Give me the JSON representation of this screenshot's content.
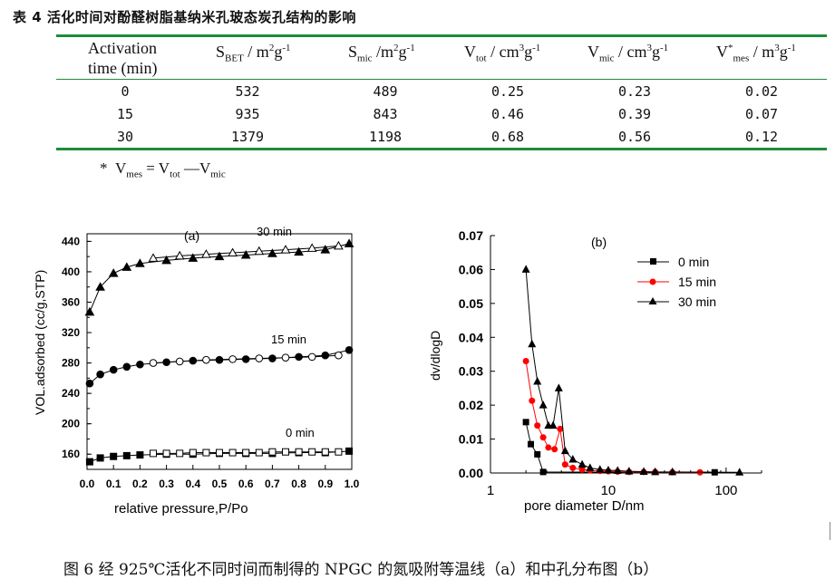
{
  "table": {
    "title": "表 4  活化时间对酚醛树脂基纳米孔玻态炭孔结构的影响",
    "headers": {
      "activation": {
        "line1": "Activation",
        "line2": "time (min)"
      },
      "sbet": {
        "main": "S",
        "sub": "BET",
        "rest1": " / m",
        "sup1": "2",
        "rest2": "g",
        "sup2": "-1"
      },
      "smic": {
        "main": "S",
        "sub": "mic",
        "rest1": " /m",
        "sup1": "2",
        "rest2": "g",
        "sup2": "-1"
      },
      "vtot": {
        "main": "V",
        "sub": "tot",
        "rest1": " / cm",
        "sup1": "3",
        "rest2": "g",
        "sup2": "-1"
      },
      "vmic": {
        "main": "V",
        "sub": "mic",
        "rest1": " / cm",
        "sup1": "3",
        "rest2": "g",
        "sup2": "-1"
      },
      "vmes": {
        "main": "V",
        "star": "*",
        "sub": "mes",
        "rest1": " / m",
        "sup1": "3",
        "rest2": "g",
        "sup2": "-1"
      }
    },
    "rows": [
      [
        "0",
        "532",
        "489",
        "0.25",
        "0.23",
        "0.02"
      ],
      [
        "15",
        "935",
        "843",
        "0.46",
        "0.39",
        "0.07"
      ],
      [
        "30",
        "1379",
        "1198",
        "0.68",
        "0.56",
        "0.12"
      ]
    ],
    "footnote": {
      "star": "*",
      "v1": "V",
      "sub1": "mes",
      "eq": " = ",
      "v2": "V",
      "sub2": "tot",
      "dash": " —",
      "v3": "V",
      "sub3": "mic"
    }
  },
  "chart_data": [
    {
      "type": "scatter",
      "panel_label": "(a)",
      "xlabel": "relative pressure,P/Po",
      "ylabel": "VOL.adsorbed (cc/g,STP)",
      "xlim": [
        0.0,
        1.0
      ],
      "ylim": [
        140,
        450
      ],
      "xticks": [
        "0.0",
        "0.1",
        "0.2",
        "0.3",
        "0.4",
        "0.5",
        "0.6",
        "0.7",
        "0.8",
        "0.9",
        "1.0"
      ],
      "yticks": [
        "160",
        "200",
        "240",
        "280",
        "320",
        "360",
        "400",
        "440"
      ],
      "series": [
        {
          "name": "0 min",
          "adsorption": {
            "x": [
              0.01,
              0.05,
              0.1,
              0.15,
              0.2,
              0.3,
              0.4,
              0.5,
              0.6,
              0.7,
              0.8,
              0.9,
              0.99
            ],
            "y": [
              150,
              155,
              157,
              158,
              159,
              160,
              160,
              161,
              161,
              161,
              162,
              162,
              164
            ]
          },
          "desorption": {
            "x": [
              0.25,
              0.3,
              0.35,
              0.4,
              0.45,
              0.5,
              0.55,
              0.6,
              0.65,
              0.7,
              0.75,
              0.8,
              0.85,
              0.9,
              0.95
            ],
            "y": [
              161,
              161,
              161,
              162,
              162,
              162,
              162,
              162,
              162,
              163,
              163,
              163,
              163,
              163,
              163
            ]
          }
        },
        {
          "name": "15 min",
          "adsorption": {
            "x": [
              0.01,
              0.05,
              0.1,
              0.15,
              0.2,
              0.3,
              0.4,
              0.5,
              0.6,
              0.7,
              0.8,
              0.9,
              0.99
            ],
            "y": [
              253,
              265,
              271,
              275,
              278,
              281,
              283,
              284,
              285,
              286,
              288,
              290,
              297
            ]
          },
          "desorption": {
            "x": [
              0.25,
              0.35,
              0.45,
              0.55,
              0.65,
              0.75,
              0.85,
              0.95
            ],
            "y": [
              280,
              282,
              284,
              285,
              286,
              287,
              288,
              290
            ]
          }
        },
        {
          "name": "30 min",
          "adsorption": {
            "x": [
              0.01,
              0.05,
              0.1,
              0.15,
              0.2,
              0.3,
              0.4,
              0.5,
              0.6,
              0.7,
              0.8,
              0.9,
              0.99
            ],
            "y": [
              347,
              380,
              398,
              406,
              411,
              415,
              418,
              420,
              422,
              424,
              426,
              429,
              437
            ]
          },
          "desorption": {
            "x": [
              0.25,
              0.35,
              0.45,
              0.55,
              0.65,
              0.75,
              0.85,
              0.95
            ],
            "y": [
              418,
              421,
              423,
              425,
              427,
              429,
              431,
              434
            ]
          }
        }
      ]
    },
    {
      "type": "line",
      "panel_label": "(b)",
      "xlabel": "pore diameter   D/nm",
      "ylabel": "dv/dlogD",
      "xscale": "log",
      "xlim": [
        1,
        200
      ],
      "ylim": [
        0.0,
        0.07
      ],
      "xticks": [
        "1",
        "10",
        "100"
      ],
      "yticks": [
        "0.00",
        "0.01",
        "0.02",
        "0.03",
        "0.04",
        "0.05",
        "0.06",
        "0.07"
      ],
      "legend_position": "top-right",
      "series": [
        {
          "name": "0 min",
          "color": "#000000",
          "marker": "square",
          "x": [
            2.0,
            2.2,
            2.5,
            2.8,
            80
          ],
          "y": [
            0.015,
            0.0085,
            0.0055,
            0.0003,
            0.0002
          ]
        },
        {
          "name": "15 min",
          "color": "#ff0000",
          "marker": "circle",
          "x": [
            2.0,
            2.25,
            2.5,
            2.8,
            3.1,
            3.5,
            3.9,
            4.3,
            5.0,
            6.0,
            7.0,
            8.5,
            10,
            12,
            15,
            20,
            25,
            35,
            60
          ],
          "y": [
            0.033,
            0.0213,
            0.014,
            0.0105,
            0.0075,
            0.007,
            0.013,
            0.0025,
            0.0015,
            0.001,
            0.0008,
            0.0006,
            0.0005,
            0.0004,
            0.0003,
            0.0003,
            0.0003,
            0.0002,
            0.0002
          ]
        },
        {
          "name": "30 min",
          "color": "#000000",
          "marker": "triangle",
          "x": [
            2.0,
            2.25,
            2.5,
            2.8,
            3.1,
            3.4,
            3.8,
            4.3,
            5.0,
            6.0,
            7.0,
            8.5,
            10,
            12,
            15,
            20,
            25,
            35,
            130
          ],
          "y": [
            0.06,
            0.038,
            0.027,
            0.02,
            0.014,
            0.014,
            0.025,
            0.0065,
            0.004,
            0.0025,
            0.0015,
            0.001,
            0.0008,
            0.0007,
            0.0005,
            0.0004,
            0.0003,
            0.0003,
            0.0002
          ]
        }
      ]
    }
  ],
  "figure": {
    "caption": "图 6   经 925℃活化不同时间而制得的 NPGC 的氮吸附等温线（a）和中孔分布图（b）"
  }
}
